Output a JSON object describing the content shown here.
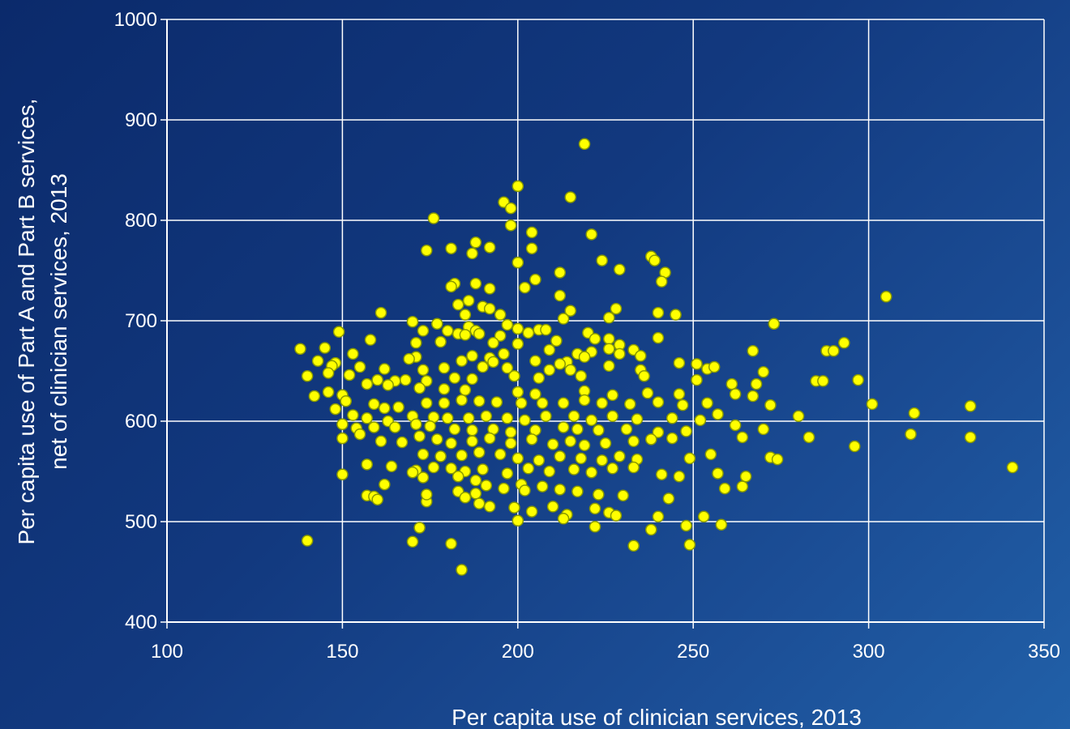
{
  "chart_data": {
    "type": "scatter",
    "title": "",
    "xlabel": "Per capita use of clinician services, 2013",
    "ylabel_lines": [
      "Per capita use of Part A and Part B services,",
      "net of clinician services, 2013"
    ],
    "xlim": [
      100,
      350
    ],
    "ylim": [
      400,
      1000
    ],
    "x_ticks": [
      100,
      150,
      200,
      250,
      300,
      350
    ],
    "y_ticks": [
      400,
      500,
      600,
      700,
      800,
      900,
      1000
    ],
    "grid": true,
    "legend": "none",
    "colors": {
      "marker_fill": "#ffff00",
      "marker_stroke": "#8a9a00",
      "grid": "#ffffff",
      "text": "#ffffff"
    },
    "points": [
      [
        219,
        876
      ],
      [
        200,
        834
      ],
      [
        215,
        823
      ],
      [
        196,
        818
      ],
      [
        198,
        812
      ],
      [
        176,
        802
      ],
      [
        198,
        795
      ],
      [
        204,
        788
      ],
      [
        221,
        786
      ],
      [
        188,
        778
      ],
      [
        174,
        770
      ],
      [
        181,
        772
      ],
      [
        192,
        773
      ],
      [
        204,
        772
      ],
      [
        187,
        767
      ],
      [
        238,
        764
      ],
      [
        239,
        760
      ],
      [
        224,
        760
      ],
      [
        200,
        758
      ],
      [
        229,
        751
      ],
      [
        242,
        748
      ],
      [
        212,
        748
      ],
      [
        241,
        739
      ],
      [
        205,
        741
      ],
      [
        188,
        737
      ],
      [
        182,
        737
      ],
      [
        181,
        734
      ],
      [
        192,
        732
      ],
      [
        202,
        733
      ],
      [
        212,
        725
      ],
      [
        305,
        724
      ],
      [
        183,
        716
      ],
      [
        186,
        720
      ],
      [
        190,
        714
      ],
      [
        192,
        712
      ],
      [
        228,
        712
      ],
      [
        185,
        706
      ],
      [
        161,
        708
      ],
      [
        195,
        706
      ],
      [
        215,
        710
      ],
      [
        226,
        703
      ],
      [
        245,
        706
      ],
      [
        240,
        708
      ],
      [
        213,
        702
      ],
      [
        170,
        699
      ],
      [
        273,
        697
      ],
      [
        177,
        697
      ],
      [
        197,
        696
      ],
      [
        186,
        694
      ],
      [
        200,
        692
      ],
      [
        206,
        691
      ],
      [
        208,
        691
      ],
      [
        203,
        688
      ],
      [
        180,
        690
      ],
      [
        188,
        690
      ],
      [
        189,
        687
      ],
      [
        173,
        690
      ],
      [
        149,
        689
      ],
      [
        183,
        687
      ],
      [
        185,
        686
      ],
      [
        195,
        685
      ],
      [
        220,
        688
      ],
      [
        240,
        683
      ],
      [
        222,
        682
      ],
      [
        226,
        682
      ],
      [
        229,
        676
      ],
      [
        178,
        679
      ],
      [
        171,
        678
      ],
      [
        158,
        681
      ],
      [
        193,
        678
      ],
      [
        200,
        677
      ],
      [
        211,
        680
      ],
      [
        293,
        678
      ],
      [
        209,
        671
      ],
      [
        226,
        672
      ],
      [
        233,
        671
      ],
      [
        221,
        669
      ],
      [
        267,
        670
      ],
      [
        288,
        670
      ],
      [
        290,
        670
      ],
      [
        145,
        673
      ],
      [
        138,
        672
      ],
      [
        153,
        667
      ],
      [
        171,
        664
      ],
      [
        169,
        662
      ],
      [
        187,
        665
      ],
      [
        192,
        663
      ],
      [
        196,
        667
      ],
      [
        217,
        667
      ],
      [
        219,
        664
      ],
      [
        229,
        667
      ],
      [
        235,
        665
      ],
      [
        251,
        657
      ],
      [
        246,
        658
      ],
      [
        214,
        659
      ],
      [
        212,
        657
      ],
      [
        205,
        660
      ],
      [
        193,
        659
      ],
      [
        184,
        660
      ],
      [
        148,
        658
      ],
      [
        143,
        660
      ],
      [
        147,
        655
      ],
      [
        146,
        648
      ],
      [
        140,
        645
      ],
      [
        155,
        654
      ],
      [
        162,
        652
      ],
      [
        173,
        651
      ],
      [
        179,
        653
      ],
      [
        190,
        654
      ],
      [
        197,
        653
      ],
      [
        209,
        651
      ],
      [
        215,
        651
      ],
      [
        226,
        655
      ],
      [
        235,
        651
      ],
      [
        254,
        652
      ],
      [
        256,
        654
      ],
      [
        270,
        649
      ],
      [
        285,
        640
      ],
      [
        287,
        640
      ],
      [
        297,
        641
      ],
      [
        152,
        646
      ],
      [
        160,
        641
      ],
      [
        165,
        640
      ],
      [
        168,
        641
      ],
      [
        174,
        640
      ],
      [
        182,
        643
      ],
      [
        187,
        642
      ],
      [
        199,
        645
      ],
      [
        206,
        643
      ],
      [
        218,
        645
      ],
      [
        236,
        645
      ],
      [
        251,
        641
      ],
      [
        261,
        637
      ],
      [
        268,
        637
      ],
      [
        157,
        637
      ],
      [
        163,
        636
      ],
      [
        172,
        633
      ],
      [
        179,
        632
      ],
      [
        185,
        631
      ],
      [
        200,
        629
      ],
      [
        205,
        627
      ],
      [
        219,
        630
      ],
      [
        227,
        626
      ],
      [
        237,
        628
      ],
      [
        246,
        627
      ],
      [
        262,
        627
      ],
      [
        267,
        625
      ],
      [
        146,
        629
      ],
      [
        142,
        625
      ],
      [
        150,
        626
      ],
      [
        151,
        620
      ],
      [
        159,
        617
      ],
      [
        162,
        613
      ],
      [
        166,
        614
      ],
      [
        174,
        618
      ],
      [
        179,
        618
      ],
      [
        184,
        621
      ],
      [
        189,
        620
      ],
      [
        194,
        619
      ],
      [
        201,
        618
      ],
      [
        207,
        618
      ],
      [
        213,
        618
      ],
      [
        219,
        621
      ],
      [
        224,
        618
      ],
      [
        232,
        617
      ],
      [
        240,
        619
      ],
      [
        247,
        616
      ],
      [
        254,
        618
      ],
      [
        272,
        616
      ],
      [
        301,
        617
      ],
      [
        329,
        615
      ],
      [
        148,
        612
      ],
      [
        153,
        606
      ],
      [
        157,
        603
      ],
      [
        163,
        600
      ],
      [
        170,
        605
      ],
      [
        176,
        604
      ],
      [
        180,
        603
      ],
      [
        186,
        603
      ],
      [
        191,
        605
      ],
      [
        197,
        603
      ],
      [
        202,
        601
      ],
      [
        208,
        605
      ],
      [
        216,
        605
      ],
      [
        221,
        601
      ],
      [
        227,
        605
      ],
      [
        234,
        602
      ],
      [
        244,
        603
      ],
      [
        252,
        601
      ],
      [
        257,
        607
      ],
      [
        280,
        605
      ],
      [
        313,
        608
      ],
      [
        150,
        597
      ],
      [
        154,
        593
      ],
      [
        159,
        594
      ],
      [
        165,
        594
      ],
      [
        171,
        597
      ],
      [
        175,
        595
      ],
      [
        182,
        592
      ],
      [
        187,
        591
      ],
      [
        193,
        592
      ],
      [
        198,
        589
      ],
      [
        205,
        591
      ],
      [
        213,
        594
      ],
      [
        217,
        592
      ],
      [
        223,
        591
      ],
      [
        231,
        592
      ],
      [
        240,
        589
      ],
      [
        248,
        590
      ],
      [
        262,
        596
      ],
      [
        270,
        592
      ],
      [
        150,
        583
      ],
      [
        155,
        587
      ],
      [
        161,
        580
      ],
      [
        167,
        579
      ],
      [
        172,
        585
      ],
      [
        177,
        582
      ],
      [
        181,
        578
      ],
      [
        187,
        580
      ],
      [
        192,
        583
      ],
      [
        198,
        578
      ],
      [
        204,
        582
      ],
      [
        210,
        577
      ],
      [
        215,
        580
      ],
      [
        219,
        576
      ],
      [
        225,
        578
      ],
      [
        233,
        580
      ],
      [
        238,
        582
      ],
      [
        244,
        583
      ],
      [
        264,
        584
      ],
      [
        283,
        584
      ],
      [
        296,
        575
      ],
      [
        312,
        587
      ],
      [
        329,
        584
      ],
      [
        173,
        567
      ],
      [
        178,
        565
      ],
      [
        184,
        566
      ],
      [
        189,
        569
      ],
      [
        195,
        567
      ],
      [
        200,
        563
      ],
      [
        206,
        561
      ],
      [
        212,
        565
      ],
      [
        218,
        563
      ],
      [
        224,
        561
      ],
      [
        229,
        565
      ],
      [
        234,
        562
      ],
      [
        249,
        563
      ],
      [
        255,
        567
      ],
      [
        272,
        564
      ],
      [
        274,
        562
      ],
      [
        157,
        557
      ],
      [
        164,
        555
      ],
      [
        171,
        551
      ],
      [
        176,
        554
      ],
      [
        181,
        553
      ],
      [
        185,
        550
      ],
      [
        190,
        552
      ],
      [
        197,
        548
      ],
      [
        203,
        553
      ],
      [
        209,
        550
      ],
      [
        216,
        552
      ],
      [
        221,
        549
      ],
      [
        227,
        553
      ],
      [
        233,
        554
      ],
      [
        241,
        547
      ],
      [
        246,
        545
      ],
      [
        257,
        548
      ],
      [
        265,
        545
      ],
      [
        341,
        554
      ],
      [
        150,
        547
      ],
      [
        162,
        537
      ],
      [
        170,
        549
      ],
      [
        173,
        544
      ],
      [
        183,
        545
      ],
      [
        188,
        541
      ],
      [
        191,
        536
      ],
      [
        196,
        533
      ],
      [
        201,
        537
      ],
      [
        207,
        535
      ],
      [
        212,
        532
      ],
      [
        183,
        530
      ],
      [
        188,
        528
      ],
      [
        202,
        531
      ],
      [
        217,
        530
      ],
      [
        223,
        527
      ],
      [
        230,
        526
      ],
      [
        243,
        523
      ],
      [
        259,
        533
      ],
      [
        264,
        535
      ],
      [
        157,
        526
      ],
      [
        159,
        525
      ],
      [
        160,
        522
      ],
      [
        174,
        520
      ],
      [
        174,
        527
      ],
      [
        185,
        524
      ],
      [
        189,
        518
      ],
      [
        192,
        515
      ],
      [
        199,
        514
      ],
      [
        204,
        510
      ],
      [
        210,
        515
      ],
      [
        214,
        507
      ],
      [
        222,
        513
      ],
      [
        226,
        509
      ],
      [
        228,
        506
      ],
      [
        240,
        505
      ],
      [
        253,
        505
      ],
      [
        213,
        503
      ],
      [
        200,
        501
      ],
      [
        222,
        495
      ],
      [
        238,
        492
      ],
      [
        172,
        494
      ],
      [
        248,
        496
      ],
      [
        258,
        497
      ],
      [
        140,
        481
      ],
      [
        170,
        480
      ],
      [
        181,
        478
      ],
      [
        233,
        476
      ],
      [
        249,
        477
      ],
      [
        184,
        452
      ]
    ]
  }
}
